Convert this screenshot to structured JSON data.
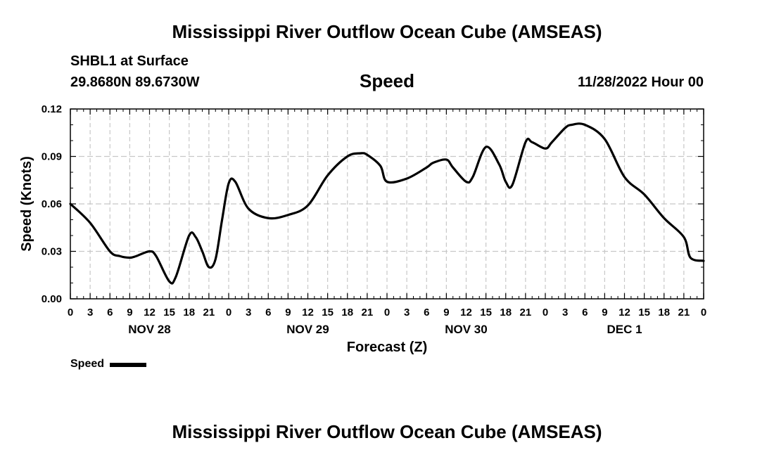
{
  "page": {
    "title": "Mississippi River Outflow Ocean Cube (AMSEAS)",
    "bottom_title": "Mississippi River Outflow Ocean Cube (AMSEAS)",
    "station": "SHBL1 at Surface",
    "coords": "29.8680N  89.6730W",
    "plot_title": "Speed",
    "datetime": "11/28/2022 Hour 00",
    "legend_label": "Speed"
  },
  "chart_data": {
    "type": "line",
    "title": "Speed",
    "xlabel": "Forecast (Z)",
    "ylabel": "Speed (Knots)",
    "xlim": [
      0,
      96
    ],
    "ylim": [
      0,
      0.12
    ],
    "grid": true,
    "yticks": [
      {
        "value": 0.0,
        "label": "0.00"
      },
      {
        "value": 0.03,
        "label": "0.03"
      },
      {
        "value": 0.06,
        "label": "0.06"
      },
      {
        "value": 0.09,
        "label": "0.09"
      },
      {
        "value": 0.12,
        "label": "0.12"
      }
    ],
    "xticks": [
      {
        "value": 0,
        "label": "0"
      },
      {
        "value": 3,
        "label": "3"
      },
      {
        "value": 6,
        "label": "6"
      },
      {
        "value": 9,
        "label": "9"
      },
      {
        "value": 12,
        "label": "12"
      },
      {
        "value": 15,
        "label": "15"
      },
      {
        "value": 18,
        "label": "18"
      },
      {
        "value": 21,
        "label": "21"
      },
      {
        "value": 24,
        "label": "0"
      },
      {
        "value": 27,
        "label": "3"
      },
      {
        "value": 30,
        "label": "6"
      },
      {
        "value": 33,
        "label": "9"
      },
      {
        "value": 36,
        "label": "12"
      },
      {
        "value": 39,
        "label": "15"
      },
      {
        "value": 42,
        "label": "18"
      },
      {
        "value": 45,
        "label": "21"
      },
      {
        "value": 48,
        "label": "0"
      },
      {
        "value": 51,
        "label": "3"
      },
      {
        "value": 54,
        "label": "6"
      },
      {
        "value": 57,
        "label": "9"
      },
      {
        "value": 60,
        "label": "12"
      },
      {
        "value": 63,
        "label": "15"
      },
      {
        "value": 66,
        "label": "18"
      },
      {
        "value": 69,
        "label": "21"
      },
      {
        "value": 72,
        "label": "0"
      },
      {
        "value": 75,
        "label": "3"
      },
      {
        "value": 78,
        "label": "6"
      },
      {
        "value": 81,
        "label": "9"
      },
      {
        "value": 84,
        "label": "12"
      },
      {
        "value": 87,
        "label": "15"
      },
      {
        "value": 90,
        "label": "18"
      },
      {
        "value": 93,
        "label": "21"
      },
      {
        "value": 96,
        "label": "0"
      }
    ],
    "day_labels": [
      {
        "value": 12,
        "label": "NOV 28"
      },
      {
        "value": 36,
        "label": "NOV 29"
      },
      {
        "value": 60,
        "label": "NOV 30"
      },
      {
        "value": 84,
        "label": "DEC 1"
      }
    ],
    "series": [
      {
        "name": "Speed",
        "x": [
          0,
          3,
          6,
          7.5,
          9,
          10,
          12,
          13,
          15,
          16,
          18,
          19,
          20,
          21,
          22,
          23,
          24,
          25,
          27,
          30,
          33,
          36,
          39,
          42,
          44,
          45,
          47,
          48,
          51,
          54,
          55,
          57,
          58,
          60,
          61,
          63,
          65,
          66,
          67,
          69,
          70,
          72,
          73,
          75,
          76,
          78,
          81,
          84,
          87,
          90,
          93,
          94,
          96
        ],
        "values": [
          0.06,
          0.048,
          0.03,
          0.027,
          0.026,
          0.027,
          0.03,
          0.027,
          0.011,
          0.014,
          0.04,
          0.039,
          0.03,
          0.02,
          0.025,
          0.05,
          0.073,
          0.074,
          0.057,
          0.051,
          0.053,
          0.059,
          0.078,
          0.09,
          0.092,
          0.091,
          0.084,
          0.074,
          0.076,
          0.083,
          0.086,
          0.088,
          0.083,
          0.074,
          0.077,
          0.096,
          0.085,
          0.074,
          0.072,
          0.099,
          0.099,
          0.095,
          0.099,
          0.108,
          0.11,
          0.11,
          0.101,
          0.077,
          0.066,
          0.051,
          0.039,
          0.026,
          0.024
        ]
      }
    ]
  }
}
